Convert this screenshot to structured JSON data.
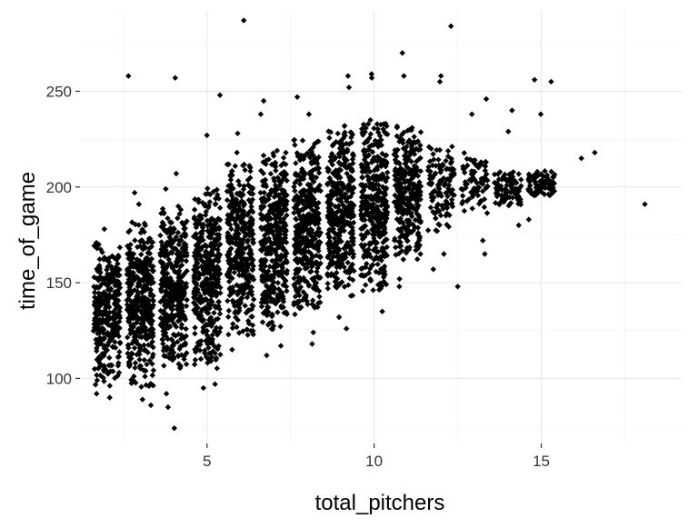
{
  "chart_data": {
    "type": "scatter",
    "title": "",
    "xlabel": "total_pitchers",
    "ylabel": "time_of_game",
    "xlim": [
      1.2,
      19.2
    ],
    "ylim": [
      66,
      292
    ],
    "x_ticks": [
      5,
      10,
      15
    ],
    "y_ticks": [
      100,
      150,
      200,
      250
    ],
    "x_tick_labels": [
      "5",
      "10",
      "15"
    ],
    "y_tick_labels": [
      "100",
      "150",
      "200",
      "250"
    ],
    "grid": true,
    "legend": "none",
    "point_color": "#000000",
    "point_shape": "diamond",
    "jitter_width": 0.4,
    "groups": [
      {
        "x": 2,
        "core": [
          96,
          172
        ],
        "outliers": [
          90,
          92,
          178
        ]
      },
      {
        "x": 3,
        "core": [
          95,
          182
        ],
        "outliers": [
          86,
          89,
          191,
          197
        ]
      },
      {
        "x": 4,
        "core": [
          104,
          190
        ],
        "outliers": [
          74,
          85,
          92,
          199,
          207
        ]
      },
      {
        "x": 5,
        "core": [
          105,
          200
        ],
        "outliers": [
          95,
          97,
          227,
          248
        ]
      },
      {
        "x": 6,
        "core": [
          122,
          212
        ],
        "outliers": [
          115,
          218,
          228
        ]
      },
      {
        "x": 7,
        "core": [
          125,
          220
        ],
        "outliers": [
          112,
          117,
          238,
          245
        ]
      },
      {
        "x": 8,
        "core": [
          130,
          225
        ],
        "outliers": [
          118,
          124,
          238,
          247
        ]
      },
      {
        "x": 9,
        "core": [
          143,
          232
        ],
        "outliers": [
          126,
          132,
          252,
          258
        ]
      },
      {
        "x": 10,
        "core": [
          145,
          235
        ],
        "outliers": [
          135,
          257,
          259
        ]
      },
      {
        "x": 11,
        "core": [
          162,
          232
        ],
        "outliers": [
          148,
          152,
          258,
          270
        ]
      },
      {
        "x": 12,
        "core": [
          175,
          222
        ],
        "outliers": [
          157,
          165,
          255,
          258
        ]
      },
      {
        "x": 13,
        "core": [
          185,
          218
        ],
        "outliers": [
          165,
          172,
          238,
          246
        ]
      },
      {
        "x": 14,
        "core": [
          190,
          210
        ],
        "outliers": [
          180,
          229,
          240
        ]
      },
      {
        "x": 15,
        "core": [
          195,
          210
        ],
        "outliers": [
          183,
          238,
          255
        ]
      }
    ],
    "notable_points": [
      {
        "x": 6.1,
        "y": 287
      },
      {
        "x": 12.3,
        "y": 284
      },
      {
        "x": 4.05,
        "y": 257
      },
      {
        "x": 2.65,
        "y": 258
      },
      {
        "x": 14.8,
        "y": 256
      },
      {
        "x": 16.2,
        "y": 215
      },
      {
        "x": 16.6,
        "y": 218
      },
      {
        "x": 15.3,
        "y": 208
      },
      {
        "x": 18.1,
        "y": 191
      },
      {
        "x": 12.5,
        "y": 148
      }
    ]
  }
}
